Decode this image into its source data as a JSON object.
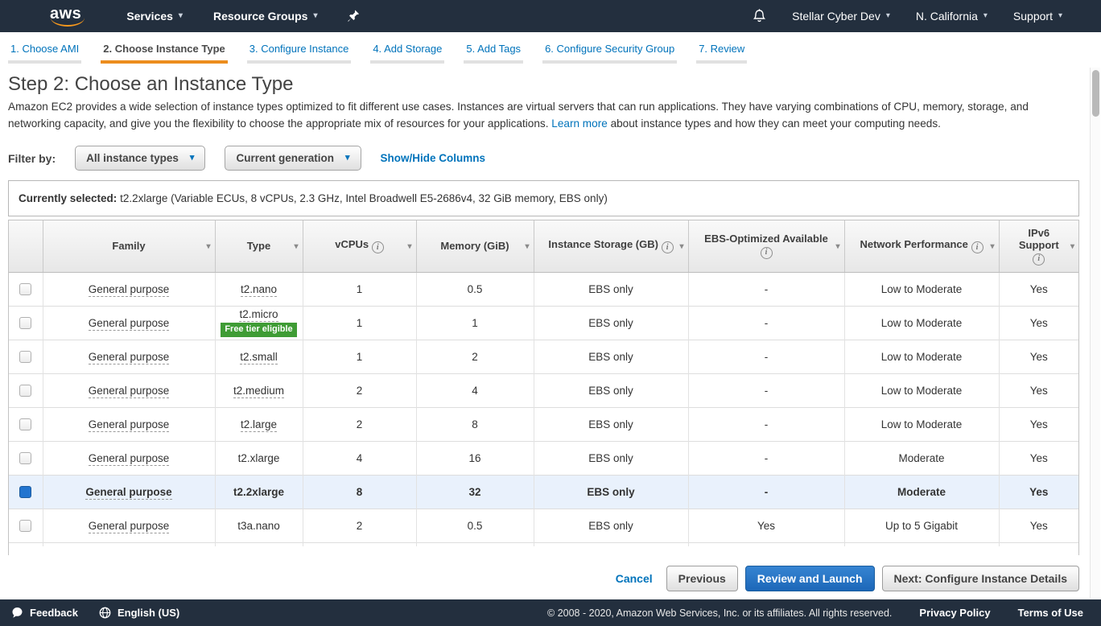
{
  "nav": {
    "logo": "aws",
    "services": "Services",
    "resource_groups": "Resource Groups",
    "account": "Stellar Cyber Dev",
    "region": "N. California",
    "support": "Support"
  },
  "ui": {
    "caret": "▾",
    "info_glyph": "i"
  },
  "steps": [
    {
      "label": "1. Choose AMI",
      "active": false
    },
    {
      "label": "2. Choose Instance Type",
      "active": true
    },
    {
      "label": "3. Configure Instance",
      "active": false
    },
    {
      "label": "4. Add Storage",
      "active": false
    },
    {
      "label": "5. Add Tags",
      "active": false
    },
    {
      "label": "6. Configure Security Group",
      "active": false
    },
    {
      "label": "7. Review",
      "active": false
    }
  ],
  "page": {
    "title": "Step 2: Choose an Instance Type",
    "description_before": "Amazon EC2 provides a wide selection of instance types optimized to fit different use cases. Instances are virtual servers that can run applications. They have varying combinations of CPU, memory, storage, and networking capacity, and give you the flexibility to choose the appropriate mix of resources for your applications.",
    "learn_more": "Learn more",
    "description_after": "about instance types and how they can meet your computing needs."
  },
  "filter": {
    "label": "Filter by:",
    "instance_types_dropdown": "All instance types",
    "generation_dropdown": "Current generation",
    "columns_link": "Show/Hide Columns"
  },
  "selection_bar": {
    "label": "Currently selected:",
    "value": "t2.2xlarge (Variable ECUs, 8 vCPUs, 2.3 GHz, Intel Broadwell E5-2686v4, 32 GiB memory, EBS only)"
  },
  "table": {
    "headers": [
      {
        "label": "",
        "sort": false,
        "info": null
      },
      {
        "label": "Family",
        "sort": true,
        "info": null
      },
      {
        "label": "Type",
        "sort": true,
        "info": null
      },
      {
        "label": "vCPUs",
        "sort": true,
        "info": "inline"
      },
      {
        "label": "Memory (GiB)",
        "sort": true,
        "info": null
      },
      {
        "label": "Instance Storage (GB)",
        "sort": true,
        "info": "inline"
      },
      {
        "label": "EBS-Optimized Available",
        "sort": true,
        "info": "below"
      },
      {
        "label": "Network Performance",
        "sort": true,
        "info": "inline"
      },
      {
        "label": "IPv6 Support",
        "sort": true,
        "info": "below"
      }
    ],
    "rows": [
      {
        "family": "General purpose",
        "type": "t2.nano",
        "type_dotted": true,
        "badge": null,
        "vcpus": "1",
        "memory": "0.5",
        "storage": "EBS only",
        "ebs_optimized": "-",
        "network": "Low to Moderate",
        "ipv6": "Yes",
        "selected": false
      },
      {
        "family": "General purpose",
        "type": "t2.micro",
        "type_dotted": true,
        "badge": "Free tier eligible",
        "vcpus": "1",
        "memory": "1",
        "storage": "EBS only",
        "ebs_optimized": "-",
        "network": "Low to Moderate",
        "ipv6": "Yes",
        "selected": false
      },
      {
        "family": "General purpose",
        "type": "t2.small",
        "type_dotted": true,
        "badge": null,
        "vcpus": "1",
        "memory": "2",
        "storage": "EBS only",
        "ebs_optimized": "-",
        "network": "Low to Moderate",
        "ipv6": "Yes",
        "selected": false
      },
      {
        "family": "General purpose",
        "type": "t2.medium",
        "type_dotted": true,
        "badge": null,
        "vcpus": "2",
        "memory": "4",
        "storage": "EBS only",
        "ebs_optimized": "-",
        "network": "Low to Moderate",
        "ipv6": "Yes",
        "selected": false
      },
      {
        "family": "General purpose",
        "type": "t2.large",
        "type_dotted": true,
        "badge": null,
        "vcpus": "2",
        "memory": "8",
        "storage": "EBS only",
        "ebs_optimized": "-",
        "network": "Low to Moderate",
        "ipv6": "Yes",
        "selected": false
      },
      {
        "family": "General purpose",
        "type": "t2.xlarge",
        "type_dotted": false,
        "badge": null,
        "vcpus": "4",
        "memory": "16",
        "storage": "EBS only",
        "ebs_optimized": "-",
        "network": "Moderate",
        "ipv6": "Yes",
        "selected": false
      },
      {
        "family": "General purpose",
        "type": "t2.2xlarge",
        "type_dotted": false,
        "badge": null,
        "vcpus": "8",
        "memory": "32",
        "storage": "EBS only",
        "ebs_optimized": "-",
        "network": "Moderate",
        "ipv6": "Yes",
        "selected": true
      },
      {
        "family": "General purpose",
        "type": "t3a.nano",
        "type_dotted": false,
        "badge": null,
        "vcpus": "2",
        "memory": "0.5",
        "storage": "EBS only",
        "ebs_optimized": "Yes",
        "network": "Up to 5 Gigabit",
        "ipv6": "Yes",
        "selected": false
      }
    ],
    "has_partial_row": true
  },
  "actions": {
    "cancel": "Cancel",
    "previous": "Previous",
    "review_and_launch": "Review and Launch",
    "next": "Next: Configure Instance Details"
  },
  "footer": {
    "feedback": "Feedback",
    "language": "English (US)",
    "copyright": "© 2008 - 2020, Amazon Web Services, Inc. or its affiliates. All rights reserved.",
    "privacy": "Privacy Policy",
    "terms": "Terms of Use"
  },
  "colors": {
    "nav_bg": "#232f3e",
    "link_blue": "#0073bb",
    "active_step_orange": "#ec8d1e",
    "primary_button_blue": "#2276cf",
    "selected_row_bg": "#e9f1fc",
    "selected_checkbox_blue": "#2274cf",
    "free_tier_badge_green": "#3f9c35",
    "logo_smile_orange": "#f8991d"
  }
}
